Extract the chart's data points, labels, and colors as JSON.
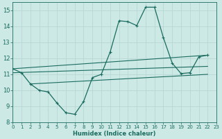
{
  "xlabel": "Humidex (Indice chaleur)",
  "xlim": [
    0,
    23
  ],
  "ylim": [
    8,
    15.5
  ],
  "yticks": [
    8,
    9,
    10,
    11,
    12,
    13,
    14,
    15
  ],
  "xticks": [
    0,
    1,
    2,
    3,
    4,
    5,
    6,
    7,
    8,
    9,
    10,
    11,
    12,
    13,
    14,
    15,
    16,
    17,
    18,
    19,
    20,
    21,
    22,
    23
  ],
  "bg_color": "#cce9e6",
  "grid_color": "#b8d8d5",
  "line_color": "#1a6b5e",
  "main_line_x": [
    0,
    1,
    2,
    3,
    4,
    5,
    6,
    7,
    8,
    9,
    10,
    11,
    12,
    13,
    14,
    15,
    16,
    17,
    18,
    19,
    20,
    21,
    22
  ],
  "main_line_y": [
    11.35,
    11.1,
    10.4,
    10.0,
    9.9,
    9.2,
    8.6,
    8.5,
    9.3,
    10.8,
    11.0,
    12.4,
    14.35,
    14.3,
    14.05,
    15.2,
    15.2,
    13.3,
    11.7,
    11.05,
    11.1,
    12.1,
    12.2
  ],
  "linear_lines": [
    {
      "x0": 0,
      "y0": 11.35,
      "x1": 22,
      "y1": 12.2
    },
    {
      "x0": 0,
      "y0": 11.1,
      "x1": 22,
      "y1": 11.5
    },
    {
      "x0": 0,
      "y0": 10.4,
      "x1": 22,
      "y1": 11.0
    },
    {
      "x0": 2,
      "y0": 10.4,
      "x1": 22,
      "y1": 11.0
    }
  ]
}
